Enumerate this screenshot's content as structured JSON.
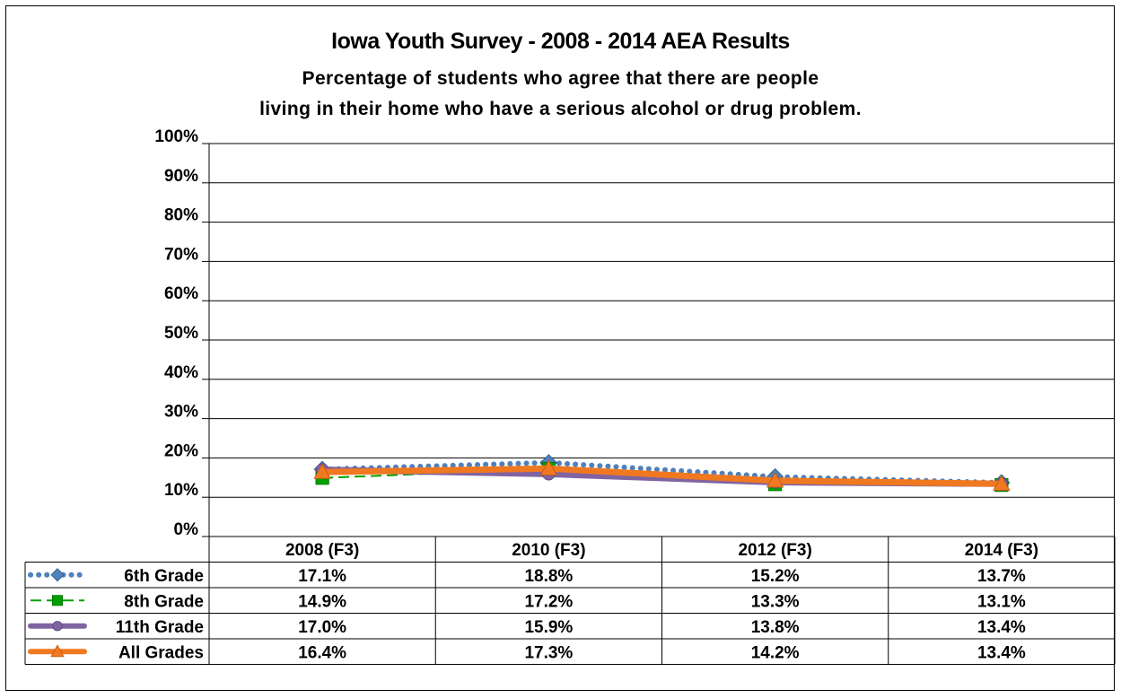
{
  "title": "Iowa Youth Survey - 2008 - 2014 AEA Results",
  "subtitle_line1": "Percentage of students who agree that there are people",
  "subtitle_line2": "living in their home who have a serious alcohol or drug problem.",
  "chart_data": {
    "type": "line",
    "categories": [
      "2008 (F3)",
      "2010 (F3)",
      "2012 (F3)",
      "2014 (F3)"
    ],
    "series": [
      {
        "name": "6th Grade",
        "values": [
          17.1,
          18.8,
          15.2,
          13.7
        ],
        "labels": [
          "17.1%",
          "18.8%",
          "15.2%",
          "13.7%"
        ],
        "color": "#4f81bd",
        "line_style": "dotted",
        "marker": "diamond"
      },
      {
        "name": "8th Grade",
        "values": [
          14.9,
          17.2,
          13.3,
          13.1
        ],
        "labels": [
          "14.9%",
          "17.2%",
          "13.3%",
          "13.1%"
        ],
        "color": "#00a000",
        "line_style": "dashed",
        "marker": "square"
      },
      {
        "name": "11th Grade",
        "values": [
          17.0,
          15.9,
          13.8,
          13.4
        ],
        "labels": [
          "17.0%",
          "15.9%",
          "13.8%",
          "13.4%"
        ],
        "color": "#8064a2",
        "line_style": "solid",
        "marker": "circle"
      },
      {
        "name": "All Grades",
        "values": [
          16.4,
          17.3,
          14.2,
          13.4
        ],
        "labels": [
          "16.4%",
          "17.3%",
          "14.2%",
          "13.4%"
        ],
        "color": "#f07820",
        "line_style": "solid",
        "marker": "triangle"
      }
    ],
    "ylim": [
      0,
      100
    ],
    "yticks": [
      "0%",
      "10%",
      "20%",
      "30%",
      "40%",
      "50%",
      "60%",
      "70%",
      "80%",
      "90%",
      "100%"
    ],
    "grid": true,
    "legend": "data-table"
  }
}
